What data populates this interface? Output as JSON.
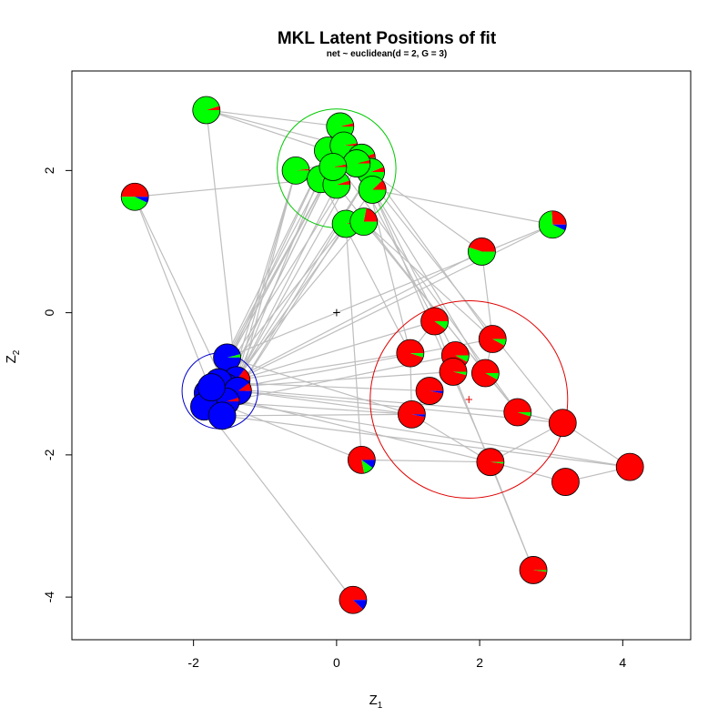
{
  "chart_data": {
    "type": "scatter",
    "title": "MKL Latent Positions of fit",
    "subtitle": "net ~ euclidean(d = 2, G = 3)",
    "xlabel": {
      "main": "Z",
      "sub": "1"
    },
    "ylabel": {
      "main": "Z",
      "sub": "2"
    },
    "xlim": [
      -3.7,
      4.95
    ],
    "ylim": [
      -4.6,
      3.4
    ],
    "xticks": [
      "-2",
      "0",
      "2",
      "4"
    ],
    "yticks": [
      "-4",
      "-2",
      "0",
      "2"
    ],
    "xtick_values": [
      -2,
      0,
      2,
      4
    ],
    "ytick_values": [
      -4,
      -2,
      0,
      2
    ],
    "grid": false,
    "colors": {
      "red": "#ff0000",
      "green": "#00ff00",
      "blue": "#0000ff",
      "edge": "#bebebe",
      "circle_red": "#e00000",
      "circle_green": "#00c800",
      "circle_blue": "#0000cc"
    },
    "origin_marker": {
      "x": 0,
      "y": 0,
      "color": "#000000"
    },
    "clusters": [
      {
        "name": "red",
        "center": [
          1.85,
          -1.22
        ],
        "radius": 1.38,
        "color": "#e00000"
      },
      {
        "name": "green",
        "center": [
          0,
          2.03
        ],
        "radius": 0.83,
        "color": "#00c800"
      },
      {
        "name": "blue",
        "center": [
          -1.63,
          -1.1
        ],
        "radius": 0.53,
        "color": "#0000cc"
      }
    ],
    "nodes": [
      {
        "x": -1.82,
        "y": 2.85,
        "probs": [
          0.05,
          0.95,
          0.0
        ]
      },
      {
        "x": -2.82,
        "y": 1.63,
        "probs": [
          0.5,
          0.43,
          0.07
        ]
      },
      {
        "x": 0.05,
        "y": 2.62,
        "probs": [
          0.04,
          0.96,
          0.0
        ]
      },
      {
        "x": -0.57,
        "y": 2.0,
        "probs": [
          0.02,
          0.98,
          0.0
        ]
      },
      {
        "x": -0.12,
        "y": 2.28,
        "probs": [
          0.03,
          0.97,
          0.0
        ]
      },
      {
        "x": 0.1,
        "y": 2.35,
        "probs": [
          0.03,
          0.97,
          0.0
        ]
      },
      {
        "x": 0.35,
        "y": 2.18,
        "probs": [
          0.05,
          0.95,
          0.0
        ]
      },
      {
        "x": 0.48,
        "y": 1.98,
        "probs": [
          0.06,
          0.94,
          0.0
        ]
      },
      {
        "x": -0.22,
        "y": 1.88,
        "probs": [
          0.03,
          0.97,
          0.0
        ]
      },
      {
        "x": 0.0,
        "y": 1.8,
        "probs": [
          0.05,
          0.95,
          0.0
        ]
      },
      {
        "x": 0.28,
        "y": 2.1,
        "probs": [
          0.04,
          0.96,
          0.0
        ]
      },
      {
        "x": -0.05,
        "y": 2.05,
        "probs": [
          0.03,
          0.97,
          0.0
        ]
      },
      {
        "x": 0.5,
        "y": 1.73,
        "probs": [
          0.12,
          0.88,
          0.0
        ]
      },
      {
        "x": 0.13,
        "y": 1.25,
        "probs": [
          0.03,
          0.97,
          0.0
        ]
      },
      {
        "x": 0.38,
        "y": 1.28,
        "probs": [
          0.22,
          0.78,
          0.0
        ]
      },
      {
        "x": 3.02,
        "y": 1.24,
        "probs": [
          0.26,
          0.67,
          0.07
        ]
      },
      {
        "x": 2.03,
        "y": 0.86,
        "probs": [
          0.45,
          0.55,
          0.0
        ]
      },
      {
        "x": -1.53,
        "y": -0.63,
        "probs": [
          0.0,
          0.04,
          0.96
        ]
      },
      {
        "x": -1.4,
        "y": -0.95,
        "probs": [
          0.15,
          0.0,
          0.85
        ]
      },
      {
        "x": -1.55,
        "y": -1.05,
        "probs": [
          0.05,
          0.0,
          0.95
        ]
      },
      {
        "x": -1.65,
        "y": -0.98,
        "probs": [
          0.0,
          0.0,
          1.0
        ]
      },
      {
        "x": -1.38,
        "y": -1.1,
        "probs": [
          0.1,
          0.0,
          0.9
        ]
      },
      {
        "x": -1.8,
        "y": -1.13,
        "probs": [
          0.0,
          0.0,
          1.0
        ]
      },
      {
        "x": -1.7,
        "y": -1.25,
        "probs": [
          0.0,
          0.0,
          1.0
        ]
      },
      {
        "x": -1.55,
        "y": -1.25,
        "probs": [
          0.05,
          0.0,
          0.95
        ]
      },
      {
        "x": -1.85,
        "y": -1.32,
        "probs": [
          0.0,
          0.0,
          1.0
        ]
      },
      {
        "x": -1.6,
        "y": -1.45,
        "probs": [
          0.0,
          0.0,
          1.0
        ]
      },
      {
        "x": -1.75,
        "y": -1.05,
        "probs": [
          0.0,
          0.0,
          1.0
        ]
      },
      {
        "x": 1.37,
        "y": -0.12,
        "probs": [
          0.9,
          0.1,
          0.0
        ]
      },
      {
        "x": 2.18,
        "y": -0.37,
        "probs": [
          0.92,
          0.08,
          0.0
        ]
      },
      {
        "x": 1.03,
        "y": -0.57,
        "probs": [
          0.95,
          0.05,
          0.0
        ]
      },
      {
        "x": 1.66,
        "y": -0.6,
        "probs": [
          0.92,
          0.08,
          0.0
        ]
      },
      {
        "x": 1.63,
        "y": -0.83,
        "probs": [
          0.96,
          0.04,
          0.0
        ]
      },
      {
        "x": 2.08,
        "y": -0.85,
        "probs": [
          0.92,
          0.08,
          0.0
        ]
      },
      {
        "x": 1.3,
        "y": -1.1,
        "probs": [
          0.97,
          0.0,
          0.03
        ]
      },
      {
        "x": 1.05,
        "y": -1.43,
        "probs": [
          0.97,
          0.0,
          0.03
        ]
      },
      {
        "x": 2.53,
        "y": -1.4,
        "probs": [
          0.95,
          0.05,
          0.0
        ]
      },
      {
        "x": 3.16,
        "y": -1.55,
        "probs": [
          1.0,
          0.0,
          0.0
        ]
      },
      {
        "x": 2.15,
        "y": -2.1,
        "probs": [
          0.98,
          0.02,
          0.0
        ]
      },
      {
        "x": 3.2,
        "y": -2.38,
        "probs": [
          1.0,
          0.0,
          0.0
        ]
      },
      {
        "x": 4.1,
        "y": -2.17,
        "probs": [
          1.0,
          0.0,
          0.0
        ]
      },
      {
        "x": 2.75,
        "y": -3.62,
        "probs": [
          0.98,
          0.02,
          0.0
        ]
      },
      {
        "x": 0.35,
        "y": -2.07,
        "probs": [
          0.78,
          0.12,
          0.1
        ]
      },
      {
        "x": 0.23,
        "y": -4.04,
        "probs": [
          0.88,
          0.0,
          0.12
        ]
      }
    ],
    "edges": [
      [
        0,
        5
      ],
      [
        0,
        4
      ],
      [
        0,
        18
      ],
      [
        0,
        2
      ],
      [
        1,
        8
      ],
      [
        1,
        19
      ],
      [
        1,
        23
      ],
      [
        2,
        18
      ],
      [
        2,
        10
      ],
      [
        3,
        18
      ],
      [
        3,
        21
      ],
      [
        4,
        20
      ],
      [
        4,
        22
      ],
      [
        5,
        19
      ],
      [
        5,
        25
      ],
      [
        6,
        18
      ],
      [
        6,
        29
      ],
      [
        7,
        21
      ],
      [
        7,
        16
      ],
      [
        8,
        22
      ],
      [
        9,
        24
      ],
      [
        10,
        20
      ],
      [
        10,
        33
      ],
      [
        11,
        19
      ],
      [
        11,
        27
      ],
      [
        12,
        15
      ],
      [
        12,
        18
      ],
      [
        12,
        31
      ],
      [
        13,
        21
      ],
      [
        13,
        42
      ],
      [
        14,
        23
      ],
      [
        14,
        36
      ],
      [
        15,
        18
      ],
      [
        15,
        17
      ],
      [
        16,
        22
      ],
      [
        16,
        29
      ],
      [
        17,
        35
      ],
      [
        18,
        28
      ],
      [
        18,
        30
      ],
      [
        19,
        32
      ],
      [
        20,
        34
      ],
      [
        21,
        35
      ],
      [
        22,
        38
      ],
      [
        23,
        42
      ],
      [
        24,
        31
      ],
      [
        25,
        43
      ],
      [
        26,
        35
      ],
      [
        27,
        36
      ],
      [
        22,
        29
      ],
      [
        28,
        30
      ],
      [
        28,
        32
      ],
      [
        29,
        33
      ],
      [
        30,
        35
      ],
      [
        31,
        32
      ],
      [
        33,
        36
      ],
      [
        34,
        35
      ],
      [
        36,
        37
      ],
      [
        37,
        38
      ],
      [
        37,
        40
      ],
      [
        38,
        39
      ],
      [
        39,
        40
      ],
      [
        38,
        41
      ],
      [
        32,
        41
      ],
      [
        35,
        38
      ],
      [
        42,
        38
      ],
      [
        24,
        40
      ],
      [
        3,
        6
      ],
      [
        2,
        9
      ],
      [
        7,
        18
      ],
      [
        11,
        25
      ],
      [
        13,
        20
      ],
      [
        6,
        30
      ],
      [
        8,
        30
      ],
      [
        5,
        28
      ],
      [
        9,
        33
      ],
      [
        4,
        36
      ],
      [
        10,
        37
      ],
      [
        12,
        38
      ],
      [
        14,
        29
      ],
      [
        3,
        24
      ],
      [
        21,
        37
      ],
      [
        23,
        35
      ],
      [
        26,
        40
      ]
    ]
  }
}
